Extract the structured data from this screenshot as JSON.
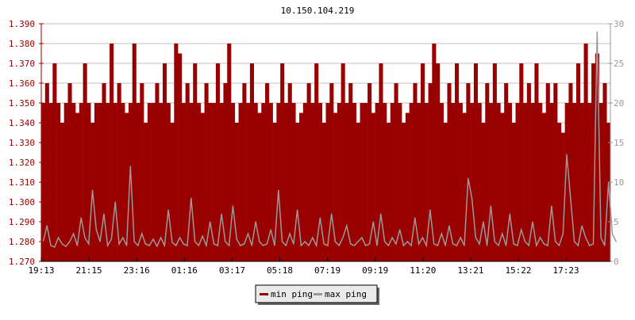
{
  "chart_data": {
    "type": "area",
    "title": "10.150.104.219",
    "x_tick_labels": [
      "19:13",
      "21:15",
      "23:16",
      "01:16",
      "03:17",
      "05:18",
      "07:19",
      "09:19",
      "11:20",
      "13:21",
      "15:22",
      "17:23"
    ],
    "y_left": {
      "range": [
        1.27,
        1.39
      ],
      "ticks": [
        "1.270",
        "1.280",
        "1.290",
        "1.300",
        "1.310",
        "1.320",
        "1.330",
        "1.340",
        "1.350",
        "1.360",
        "1.370",
        "1.380",
        "1.390"
      ],
      "color": "#990000"
    },
    "y_right": {
      "range": [
        0,
        30
      ],
      "ticks": [
        "0",
        "5",
        "10",
        "15",
        "20",
        "25",
        "30"
      ],
      "color": "#999999"
    },
    "grid": true,
    "legend_placement": "bottom",
    "series": [
      {
        "name": "min ping",
        "axis": "left",
        "color": "#990000",
        "values": [
          1.35,
          1.36,
          1.35,
          1.37,
          1.35,
          1.34,
          1.35,
          1.36,
          1.35,
          1.345,
          1.35,
          1.37,
          1.35,
          1.34,
          1.35,
          1.35,
          1.36,
          1.35,
          1.38,
          1.35,
          1.36,
          1.35,
          1.345,
          1.35,
          1.38,
          1.35,
          1.36,
          1.34,
          1.35,
          1.35,
          1.36,
          1.35,
          1.37,
          1.35,
          1.34,
          1.38,
          1.375,
          1.35,
          1.36,
          1.35,
          1.37,
          1.35,
          1.345,
          1.36,
          1.35,
          1.35,
          1.37,
          1.35,
          1.36,
          1.38,
          1.35,
          1.34,
          1.35,
          1.36,
          1.35,
          1.37,
          1.35,
          1.345,
          1.35,
          1.36,
          1.35,
          1.34,
          1.35,
          1.37,
          1.35,
          1.36,
          1.35,
          1.34,
          1.345,
          1.35,
          1.36,
          1.35,
          1.37,
          1.35,
          1.34,
          1.35,
          1.36,
          1.345,
          1.35,
          1.37,
          1.35,
          1.36,
          1.35,
          1.34,
          1.35,
          1.35,
          1.36,
          1.345,
          1.35,
          1.37,
          1.35,
          1.34,
          1.35,
          1.36,
          1.35,
          1.34,
          1.345,
          1.35,
          1.36,
          1.35,
          1.37,
          1.35,
          1.36,
          1.38,
          1.37,
          1.35,
          1.34,
          1.36,
          1.35,
          1.37,
          1.35,
          1.345,
          1.36,
          1.35,
          1.37,
          1.35,
          1.34,
          1.36,
          1.35,
          1.37,
          1.35,
          1.345,
          1.36,
          1.35,
          1.34,
          1.35,
          1.37,
          1.35,
          1.36,
          1.35,
          1.37,
          1.35,
          1.345,
          1.36,
          1.35,
          1.36,
          1.34,
          1.335,
          1.35,
          1.36,
          1.35,
          1.37,
          1.35,
          1.38,
          1.35,
          1.37,
          1.375,
          1.35,
          1.36,
          1.34
        ]
      },
      {
        "name": "max ping",
        "axis": "right",
        "color": "#999999",
        "values": [
          2.5,
          4.5,
          2.0,
          1.8,
          3.0,
          2.2,
          1.9,
          2.5,
          3.5,
          2.0,
          5.5,
          3.0,
          2.2,
          9.0,
          4.0,
          2.5,
          6.0,
          2.0,
          2.8,
          7.5,
          2.2,
          3.0,
          2.0,
          12.0,
          2.5,
          2.0,
          3.5,
          2.2,
          2.0,
          2.8,
          1.9,
          3.0,
          2.0,
          6.5,
          2.4,
          2.0,
          3.0,
          2.2,
          2.0,
          8.0,
          2.5,
          2.0,
          3.2,
          2.0,
          5.0,
          2.2,
          2.0,
          6.0,
          2.5,
          2.0,
          7.0,
          2.8,
          2.0,
          2.2,
          3.5,
          2.0,
          5.0,
          2.5,
          2.0,
          2.2,
          4.0,
          2.0,
          9.0,
          2.5,
          2.0,
          3.5,
          2.2,
          6.5,
          2.0,
          2.5,
          2.0,
          3.0,
          2.0,
          5.5,
          2.2,
          2.0,
          6.0,
          2.5,
          2.0,
          3.0,
          4.5,
          2.2,
          2.0,
          2.5,
          3.0,
          2.0,
          2.2,
          5.0,
          2.0,
          6.0,
          2.5,
          2.0,
          3.0,
          2.2,
          4.0,
          2.0,
          2.5,
          2.0,
          5.5,
          2.2,
          3.0,
          2.0,
          6.5,
          2.2,
          2.0,
          3.5,
          2.0,
          4.5,
          2.2,
          2.0,
          3.0,
          2.0,
          10.5,
          8.0,
          3.0,
          2.2,
          5.0,
          2.0,
          7.0,
          2.5,
          2.0,
          3.5,
          2.0,
          6.0,
          2.2,
          2.0,
          4.0,
          2.5,
          2.0,
          5.0,
          2.0,
          3.0,
          2.2,
          2.0,
          7.0,
          2.5,
          2.0,
          3.5,
          13.5,
          8.0,
          2.5,
          2.0,
          4.5,
          3.0,
          2.0,
          2.2,
          29.0,
          3.0,
          2.0,
          10.0,
          3.5,
          2.5
        ]
      }
    ]
  }
}
